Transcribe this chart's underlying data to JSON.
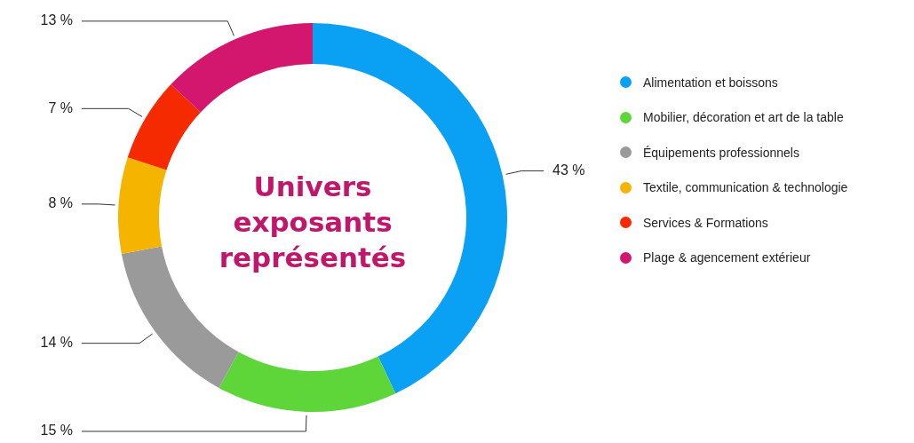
{
  "chart_data": {
    "type": "donut",
    "title": "Univers exposants représentés",
    "categories": [
      "Alimentation et boissons",
      "Mobilier, décoration et art de la table",
      "Équipements professionnels",
      "Textile, communication & technologie",
      "Services & Formations",
      "Plage & agencement extérieur"
    ],
    "values": [
      43,
      15,
      14,
      8,
      7,
      13
    ],
    "colors": [
      "#0aa1f5",
      "#5ed63a",
      "#9a9a9a",
      "#f5b400",
      "#f52a00",
      "#d4176e"
    ],
    "value_labels": [
      "43 %",
      "15 %",
      "14 %",
      "8 %",
      "7 %",
      "13 %"
    ],
    "legend": "right"
  }
}
